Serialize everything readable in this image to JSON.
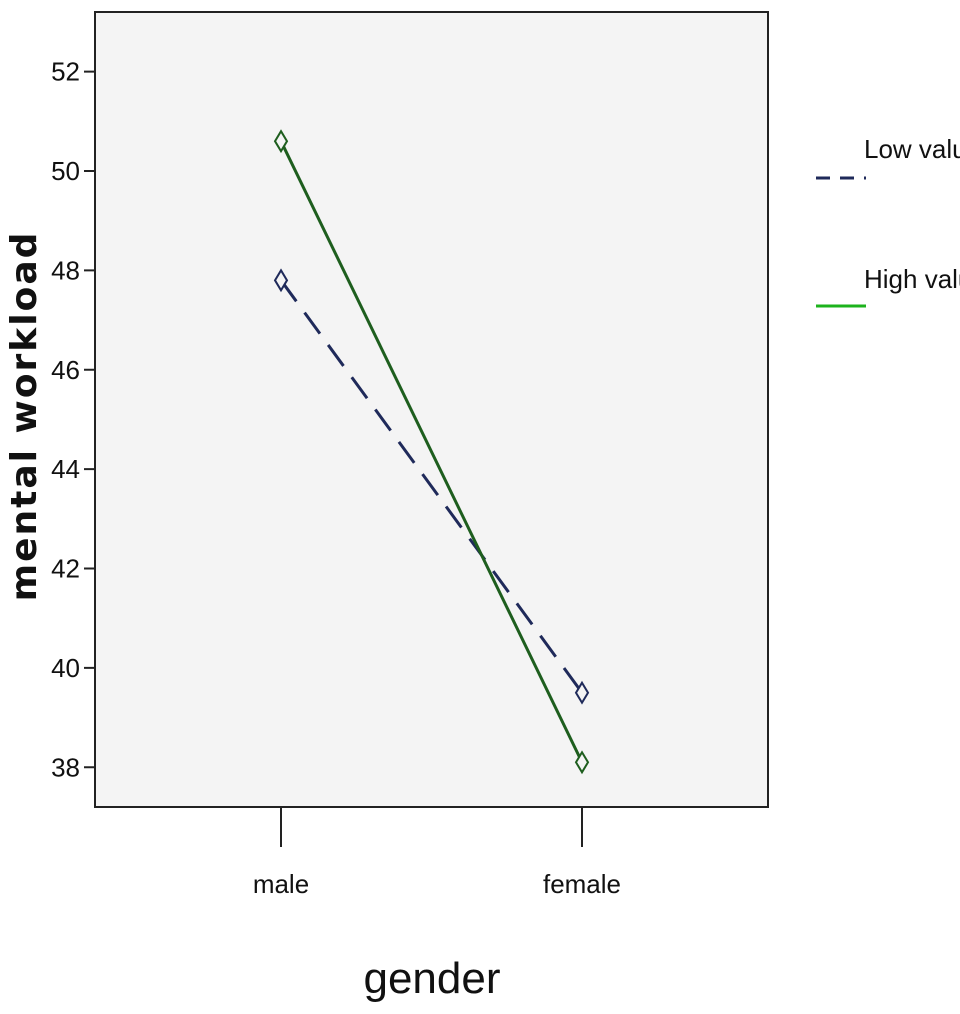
{
  "chart_data": {
    "type": "line",
    "xlabel": "gender",
    "ylabel": "mental workload",
    "categories": [
      "male",
      "female"
    ],
    "ylim": [
      37.2,
      53.2
    ],
    "yticks": [
      38,
      40,
      42,
      44,
      46,
      48,
      50,
      52
    ],
    "grid": false,
    "legend_position": "right",
    "series": [
      {
        "name": "Low value",
        "values": [
          47.8,
          39.5
        ],
        "color": "#1f2a5a",
        "style": "dashed",
        "marker": "diamond"
      },
      {
        "name": "High value",
        "values": [
          50.6,
          38.1
        ],
        "color": "#1e5e1e",
        "legend_color": "#1db31d",
        "style": "solid",
        "marker": "diamond"
      }
    ],
    "plot_background": "#f4f4f4"
  }
}
